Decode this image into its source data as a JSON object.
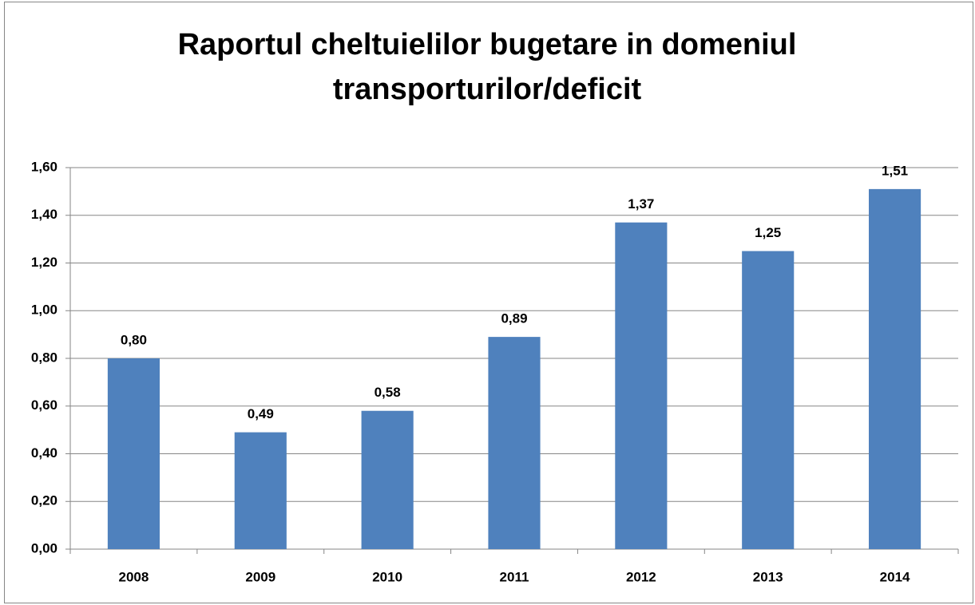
{
  "chart_data": {
    "type": "bar",
    "title": "Raportul cheltuielilor bugetare in domeniul transporturilor/deficit",
    "categories": [
      "2008",
      "2009",
      "2010",
      "2011",
      "2012",
      "2013",
      "2014"
    ],
    "values": [
      0.8,
      0.49,
      0.58,
      0.89,
      1.37,
      1.25,
      1.51
    ],
    "value_labels": [
      "0,80",
      "0,49",
      "0,58",
      "0,89",
      "1,37",
      "1,25",
      "1,51"
    ],
    "color": "#4f81bd",
    "ylim": [
      0,
      1.6
    ],
    "yticks": [
      {
        "value": 0,
        "label": "0,00"
      },
      {
        "value": 0.2,
        "label": "0,20"
      },
      {
        "value": 0.4,
        "label": "0,40"
      },
      {
        "value": 0.6,
        "label": "0,60"
      },
      {
        "value": 0.8,
        "label": "0,80"
      },
      {
        "value": 1.0,
        "label": "1,00"
      },
      {
        "value": 1.2,
        "label": "1,20"
      },
      {
        "value": 1.4,
        "label": "1,40"
      },
      {
        "value": 1.6,
        "label": "1,60"
      }
    ],
    "grid": true
  }
}
